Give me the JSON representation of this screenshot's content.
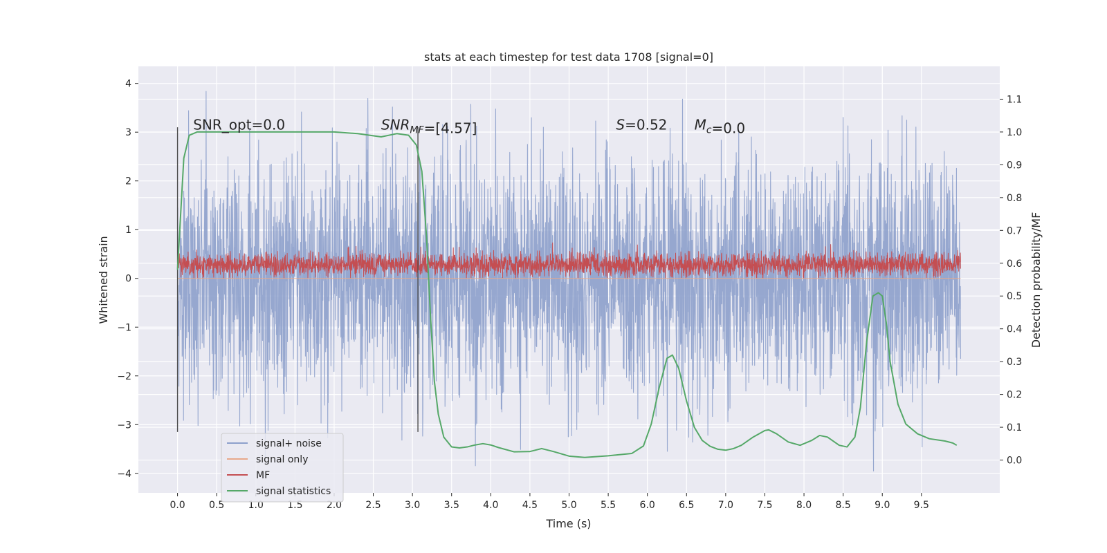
{
  "chart_data": {
    "type": "line",
    "title": "stats at each timestep for test data 1708 [signal=0]",
    "xlabel": "Time (s)",
    "ylabel": "Whitened strain",
    "y2label": "Detection probability/MF",
    "xlim": [
      -0.5,
      10.5
    ],
    "ylim": [
      -4.4,
      4.35
    ],
    "y2lim": [
      -0.1,
      1.2
    ],
    "xticks": [
      0.0,
      0.5,
      1.0,
      1.5,
      2.0,
      2.5,
      3.0,
      3.5,
      4.0,
      4.5,
      5.0,
      5.5,
      6.0,
      6.5,
      7.0,
      7.5,
      8.0,
      8.5,
      9.0,
      9.5
    ],
    "xtick_labels": [
      "0.0",
      "0.5",
      "1.0",
      "1.5",
      "2.0",
      "2.5",
      "3.0",
      "3.5",
      "4.0",
      "4.5",
      "5.0",
      "5.5",
      "6.0",
      "6.5",
      "7.0",
      "7.5",
      "8.0",
      "8.5",
      "9.0",
      "9.5"
    ],
    "yticks": [
      4,
      3,
      2,
      1,
      0,
      -1,
      -2,
      -3,
      -4
    ],
    "ytick_labels": [
      "4",
      "3",
      "2",
      "1",
      "0",
      "−1",
      "−2",
      "−3",
      "−4"
    ],
    "y2ticks": [
      1.1,
      1.0,
      0.9,
      0.8,
      0.7,
      0.6,
      0.5,
      0.4,
      0.3,
      0.2,
      0.1,
      0.0
    ],
    "y2tick_labels": [
      "1.1",
      "1.0",
      "0.9",
      "0.8",
      "0.7",
      "0.6",
      "0.5",
      "0.4",
      "0.3",
      "0.2",
      "0.1",
      "0.0"
    ],
    "grid": true,
    "legend_placement": "lower-left",
    "vlines": [
      {
        "x": 0.0,
        "ymin": -3.15,
        "ymax": 3.1
      },
      {
        "x": 3.07,
        "ymin": -3.15,
        "ymax": 3.1
      }
    ],
    "annotations": [
      {
        "x": 0.2,
        "y": 3.15,
        "parts": [
          {
            "text": "SNR_opt=0.0",
            "style": "normal"
          }
        ]
      },
      {
        "x": 2.6,
        "y": 3.15,
        "parts": [
          {
            "text": "SNR",
            "style": "italic"
          },
          {
            "text": "MF",
            "style": "italic-sub"
          },
          {
            "text": "=[4.57]",
            "style": "normal"
          }
        ]
      },
      {
        "x": 5.6,
        "y": 3.15,
        "parts": [
          {
            "text": "S",
            "style": "italic"
          },
          {
            "text": "=0.52",
            "style": "normal"
          }
        ]
      },
      {
        "x": 6.6,
        "y": 3.15,
        "parts": [
          {
            "text": "M",
            "style": "italic"
          },
          {
            "text": "c",
            "style": "italic-sub"
          },
          {
            "text": "=0.0",
            "style": "normal"
          }
        ]
      }
    ],
    "series": [
      {
        "name": "signal+ noise",
        "color": "#8da0cb",
        "axis": "left",
        "kind": "noise",
        "x_start": 0.0,
        "x_end": 10.0,
        "std": 1.2,
        "min": -4.05,
        "max": 3.95
      },
      {
        "name": "signal only",
        "color": "#e8a88a",
        "axis": "left",
        "kind": "line",
        "x": [
          0.0,
          10.0
        ],
        "y": [
          0.0,
          0.0
        ]
      },
      {
        "name": "MF",
        "color": "#c44e52",
        "axis": "left",
        "kind": "noise",
        "x_start": 0.0,
        "x_end": 10.0,
        "mean": 0.28,
        "std": 0.12,
        "min": 0.0,
        "max": 1.02
      },
      {
        "name": "signal statistics",
        "color": "#55a868",
        "axis": "right",
        "kind": "line",
        "x": [
          0.0,
          0.08,
          0.15,
          0.25,
          0.4,
          1.0,
          1.5,
          2.0,
          2.3,
          2.6,
          2.8,
          2.95,
          3.05,
          3.12,
          3.18,
          3.23,
          3.28,
          3.33,
          3.4,
          3.5,
          3.6,
          3.7,
          3.8,
          3.9,
          4.0,
          4.1,
          4.3,
          4.5,
          4.65,
          4.8,
          5.0,
          5.2,
          5.5,
          5.8,
          5.95,
          6.05,
          6.15,
          6.25,
          6.32,
          6.4,
          6.5,
          6.6,
          6.7,
          6.8,
          6.9,
          7.0,
          7.1,
          7.2,
          7.35,
          7.5,
          7.55,
          7.65,
          7.8,
          7.95,
          8.1,
          8.2,
          8.3,
          8.45,
          8.55,
          8.65,
          8.72,
          8.8,
          8.88,
          8.95,
          9.0,
          9.05,
          9.1,
          9.2,
          9.3,
          9.45,
          9.6,
          9.8,
          9.9,
          9.95
        ],
        "y": [
          0.58,
          0.92,
          0.99,
          1.0,
          1.0,
          1.0,
          1.0,
          1.0,
          0.995,
          0.985,
          0.995,
          0.99,
          0.96,
          0.88,
          0.68,
          0.44,
          0.24,
          0.14,
          0.07,
          0.04,
          0.037,
          0.04,
          0.046,
          0.05,
          0.046,
          0.038,
          0.025,
          0.026,
          0.035,
          0.026,
          0.012,
          0.008,
          0.013,
          0.02,
          0.043,
          0.11,
          0.22,
          0.31,
          0.32,
          0.28,
          0.18,
          0.1,
          0.06,
          0.042,
          0.033,
          0.03,
          0.035,
          0.045,
          0.07,
          0.09,
          0.092,
          0.08,
          0.055,
          0.045,
          0.06,
          0.075,
          0.07,
          0.045,
          0.04,
          0.07,
          0.16,
          0.36,
          0.5,
          0.51,
          0.5,
          0.42,
          0.3,
          0.17,
          0.11,
          0.08,
          0.065,
          0.058,
          0.052,
          0.045
        ]
      }
    ]
  }
}
